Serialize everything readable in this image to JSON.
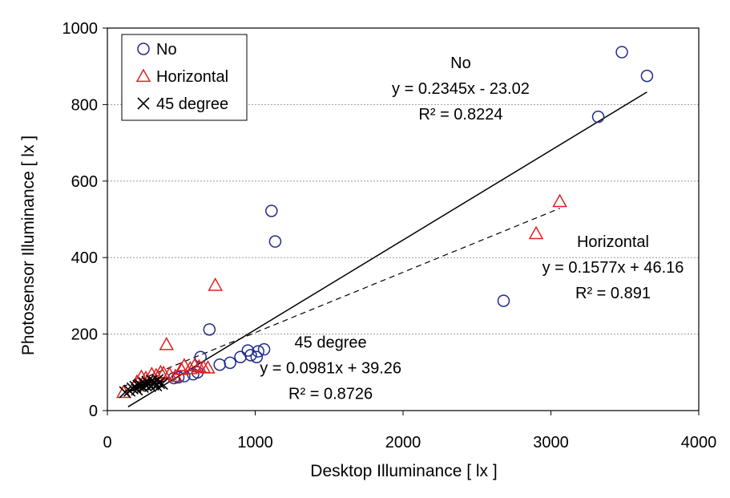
{
  "chart_data": {
    "type": "scatter",
    "xlabel": "Desktop Illuminance [ lx ]",
    "ylabel": "Photosensor Illuminance [ lx ]",
    "xlim": [
      0,
      4000
    ],
    "ylim": [
      0,
      1000
    ],
    "xticks": [
      0,
      1000,
      2000,
      3000,
      4000
    ],
    "yticks": [
      0,
      200,
      400,
      600,
      800,
      1000
    ],
    "grid": "horizontal-dashed",
    "legend": "top-left",
    "series": [
      {
        "name": "No",
        "marker": "circle",
        "color": "#1f2a8c",
        "points": [
          [
            3650,
            875
          ],
          [
            3480,
            937
          ],
          [
            3320,
            768
          ],
          [
            2680,
            287
          ],
          [
            1110,
            522
          ],
          [
            1135,
            442
          ],
          [
            690,
            212
          ],
          [
            630,
            140
          ],
          [
            760,
            120
          ],
          [
            830,
            125
          ],
          [
            900,
            140
          ],
          [
            950,
            157
          ],
          [
            970,
            145
          ],
          [
            1010,
            140
          ],
          [
            1020,
            155
          ],
          [
            1060,
            160
          ],
          [
            580,
            95
          ],
          [
            610,
            100
          ],
          [
            520,
            90
          ],
          [
            480,
            87
          ],
          [
            450,
            85
          ]
        ],
        "trendline": {
          "slope": 0.2345,
          "intercept": -23.02,
          "x_range": [
            140,
            3650
          ],
          "style": "solid"
        }
      },
      {
        "name": "Horizontal",
        "marker": "triangle",
        "color": "#e02020",
        "points": [
          [
            3060,
            547
          ],
          [
            2900,
            463
          ],
          [
            730,
            328
          ],
          [
            400,
            173
          ],
          [
            110,
            48
          ],
          [
            200,
            75
          ],
          [
            230,
            88
          ],
          [
            260,
            85
          ],
          [
            300,
            95
          ],
          [
            330,
            92
          ],
          [
            360,
            100
          ],
          [
            380,
            98
          ],
          [
            420,
            95
          ],
          [
            460,
            90
          ],
          [
            500,
            108
          ],
          [
            520,
            118
          ],
          [
            560,
            110
          ],
          [
            590,
            118
          ],
          [
            620,
            115
          ],
          [
            650,
            113
          ],
          [
            680,
            112
          ]
        ],
        "trendline": {
          "slope": 0.1577,
          "intercept": 46.16,
          "x_range": [
            100,
            3060
          ],
          "style": "dashed"
        }
      },
      {
        "name": "45 degree",
        "marker": "x",
        "color": "#000000",
        "points": [
          [
            120,
            48
          ],
          [
            150,
            52
          ],
          [
            170,
            58
          ],
          [
            190,
            62
          ],
          [
            200,
            55
          ],
          [
            210,
            65
          ],
          [
            220,
            68
          ],
          [
            240,
            62
          ],
          [
            250,
            72
          ],
          [
            260,
            66
          ],
          [
            270,
            75
          ],
          [
            280,
            70
          ],
          [
            290,
            64
          ],
          [
            300,
            78
          ],
          [
            310,
            68
          ],
          [
            320,
            74
          ],
          [
            330,
            66
          ],
          [
            340,
            80
          ],
          [
            350,
            72
          ],
          [
            370,
            70
          ]
        ],
        "trendline": {
          "slope": 0.0981,
          "intercept": 39.26,
          "x_range": [
            120,
            400
          ],
          "style": "solid"
        }
      }
    ],
    "annotations": [
      {
        "lines": [
          "No",
          "y = 0.2345x - 23.02",
          "R² = 0.8224"
        ],
        "anchor": [
          2390,
          895
        ]
      },
      {
        "lines": [
          "Horizontal",
          "y = 0.1577x + 46.16",
          "R² = 0.891"
        ],
        "anchor": [
          3420,
          428
        ]
      },
      {
        "lines": [
          "45 degree",
          "y = 0.0981x + 39.26",
          "R² = 0.8726"
        ],
        "anchor": [
          1510,
          165
        ]
      }
    ]
  }
}
